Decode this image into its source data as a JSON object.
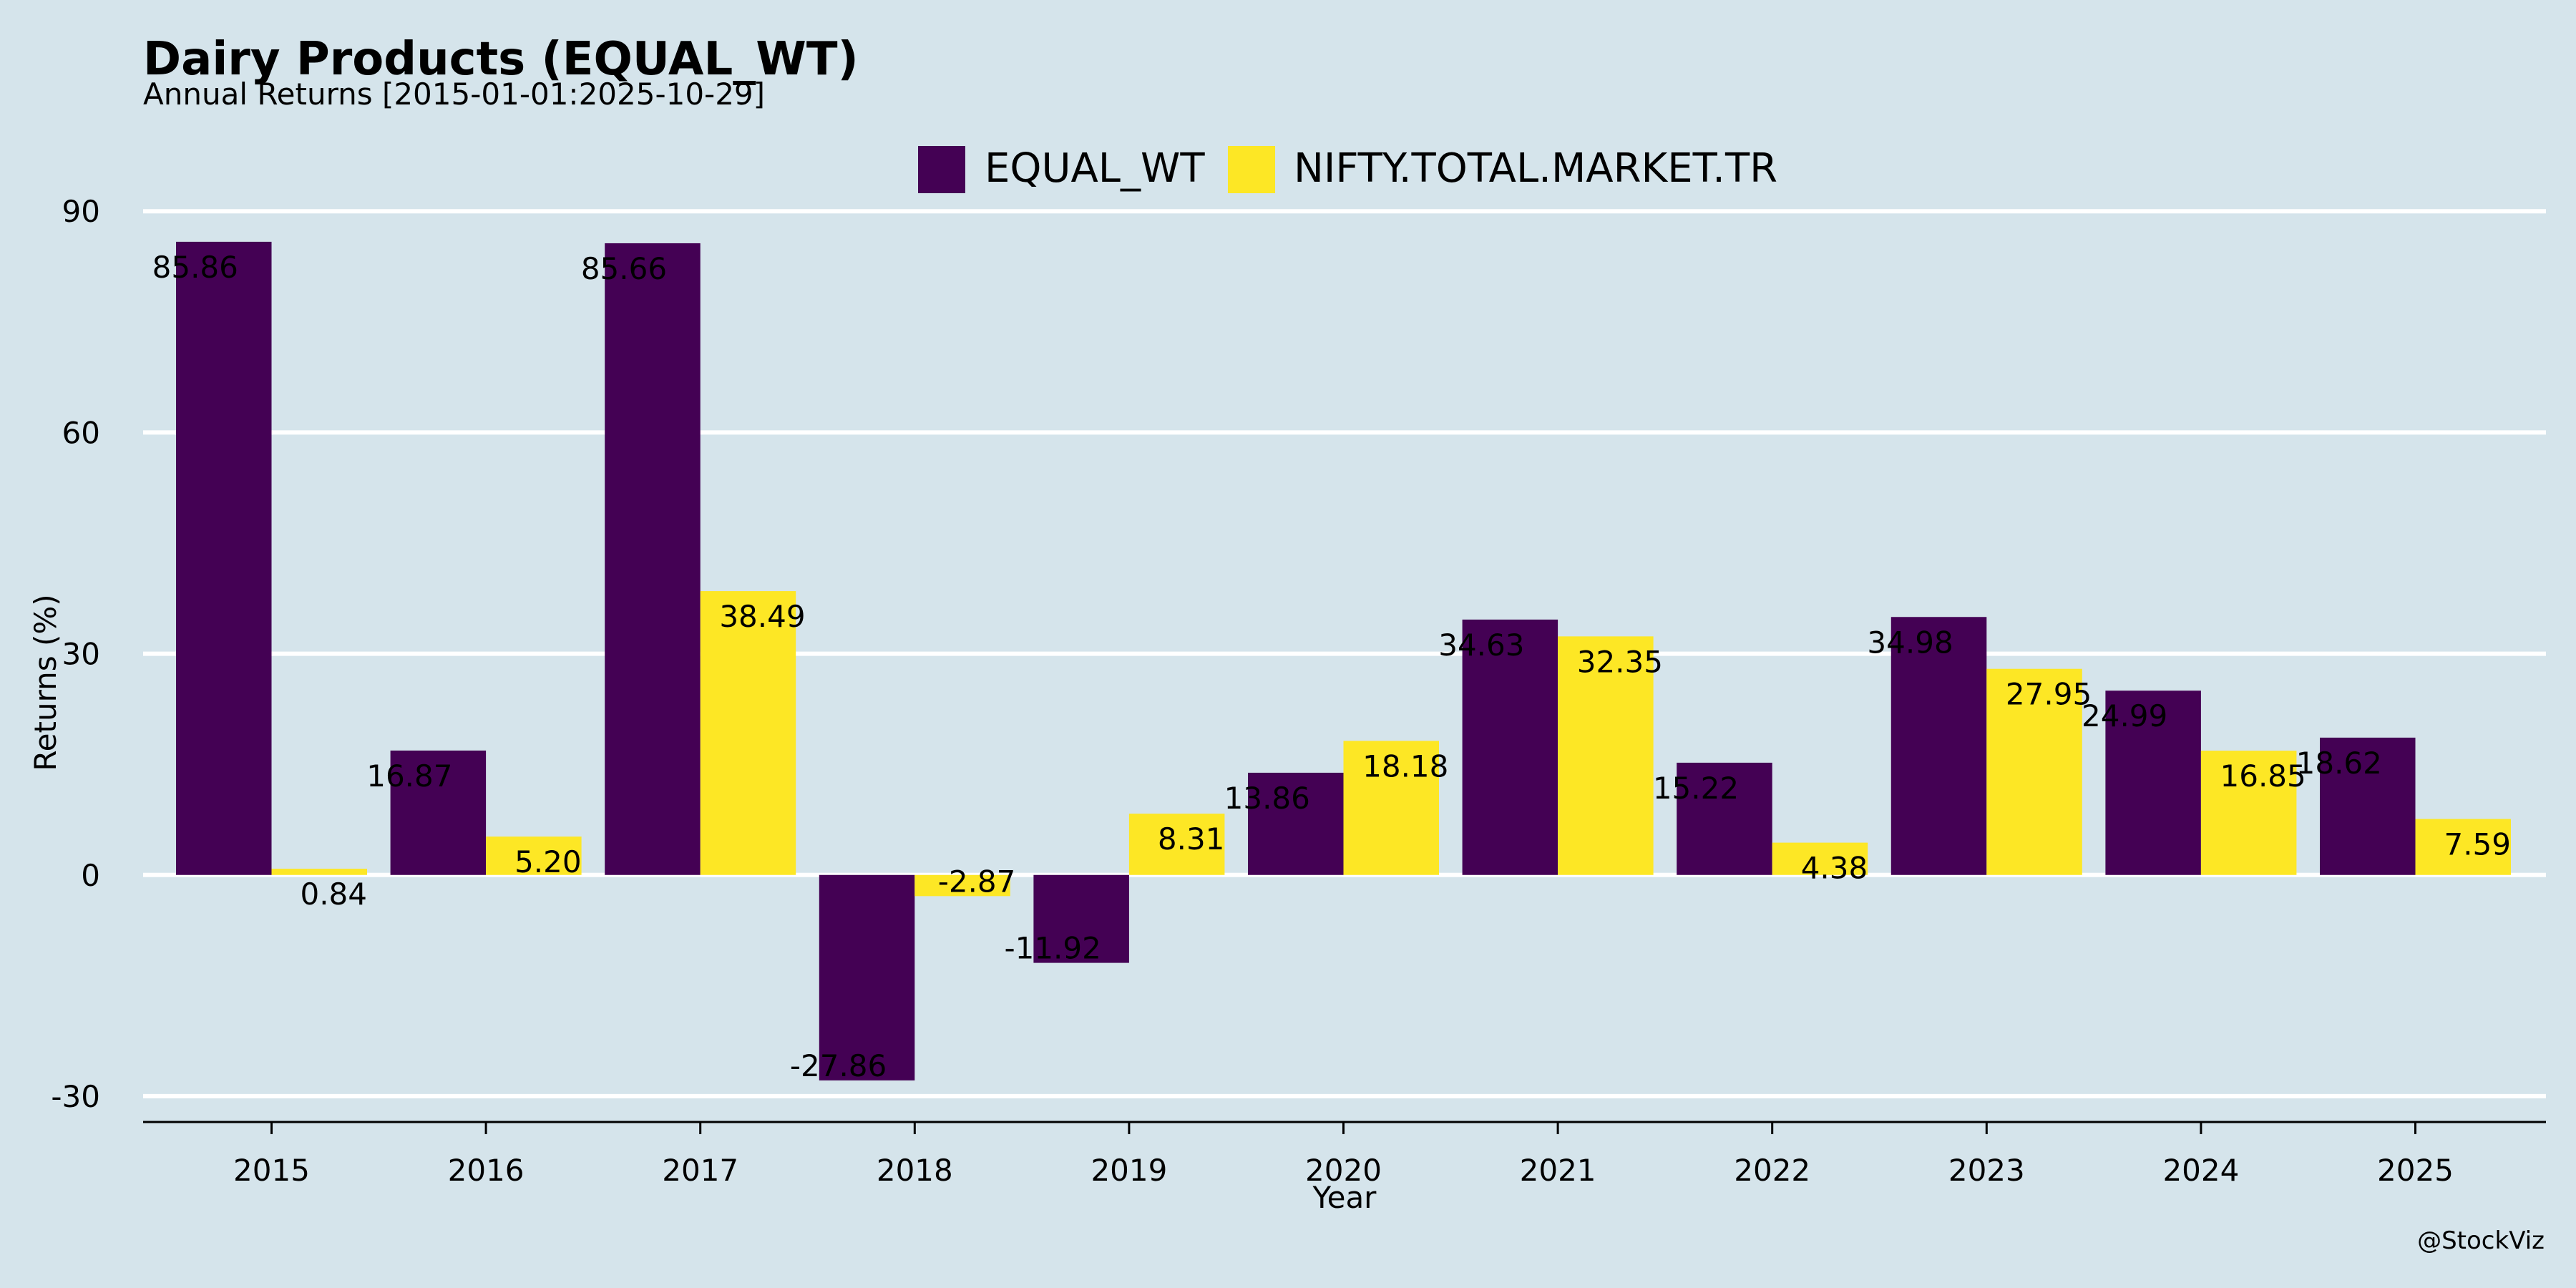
{
  "chart_data": {
    "type": "bar",
    "title": "Dairy Products (EQUAL_WT)",
    "subtitle": "Annual Returns [2015-01-01:2025-10-29]",
    "xlabel": "Year",
    "ylabel": "Returns (%)",
    "categories": [
      "2015",
      "2016",
      "2017",
      "2018",
      "2019",
      "2020",
      "2021",
      "2022",
      "2023",
      "2024",
      "2025"
    ],
    "series": [
      {
        "name": "EQUAL_WT",
        "color": "#440154",
        "values": [
          85.86,
          16.87,
          85.66,
          -27.86,
          -11.92,
          13.86,
          34.63,
          15.22,
          34.98,
          24.99,
          18.62
        ],
        "labels": [
          "85.86",
          "16.87",
          "85.66",
          "-27.86",
          "-11.92",
          "13.86",
          "34.63",
          "15.22",
          "34.98",
          "24.99",
          "18.62"
        ]
      },
      {
        "name": "NIFTY.TOTAL.MARKET.TR",
        "color": "#fde725",
        "values": [
          0.84,
          5.2,
          38.49,
          -2.87,
          8.31,
          18.18,
          32.35,
          4.38,
          27.95,
          16.85,
          7.59
        ],
        "labels": [
          "0.84",
          "5.20",
          "38.49",
          "-2.87",
          "8.31",
          "18.18",
          "32.35",
          "4.38",
          "27.95",
          "16.85",
          "7.59"
        ]
      }
    ],
    "ylim": [
      -33.5,
      94
    ],
    "yticks": [
      -30,
      0,
      30,
      60,
      90
    ],
    "grid": "horizontal",
    "legend_position": "top-center"
  },
  "colors": {
    "background": "#d5e4eb",
    "grid": "#ffffff",
    "text": "#000000"
  },
  "watermark": "@StockViz"
}
